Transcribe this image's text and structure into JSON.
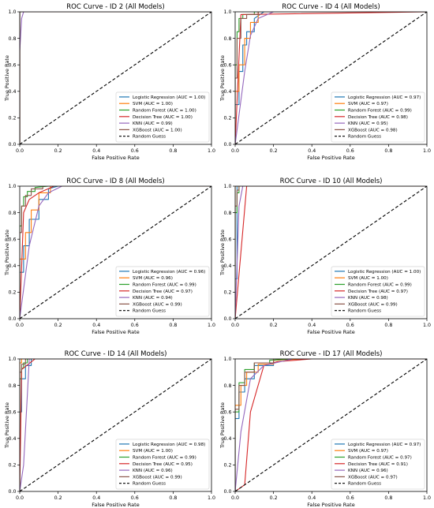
{
  "figure": {
    "background": "#ffffff"
  },
  "chart_data": [
    {
      "type": "line",
      "title": "ROC Curve - ID 2 (All Models)",
      "xlabel": "False Positive Rate",
      "ylabel": "True Positive Rate",
      "xlim": [
        0,
        1
      ],
      "ylim": [
        0,
        1
      ],
      "xticks": [
        "0.0",
        "0.2",
        "0.4",
        "0.6",
        "0.8",
        "1.0"
      ],
      "yticks": [
        "0.0",
        "0.2",
        "0.4",
        "0.6",
        "0.8",
        "1.0"
      ],
      "grid": false,
      "legend_position": "lower right",
      "series": [
        {
          "name": "Logistic Regression (AUC = 1.00)",
          "color": "#1f77b4",
          "x": [
            0,
            0,
            1
          ],
          "y": [
            0,
            1,
            1
          ]
        },
        {
          "name": "SVM (AUC = 1.00)",
          "color": "#ff7f0e",
          "x": [
            0,
            0,
            1
          ],
          "y": [
            0,
            1,
            1
          ]
        },
        {
          "name": "Random Forest (AUC = 1.00)",
          "color": "#2ca02c",
          "x": [
            0,
            0,
            1
          ],
          "y": [
            0,
            1,
            1
          ]
        },
        {
          "name": "Decision Tree (AUC = 1.00)",
          "color": "#d62728",
          "x": [
            0,
            0,
            1
          ],
          "y": [
            0,
            1,
            1
          ]
        },
        {
          "name": "KNN (AUC = 0.99)",
          "color": "#9467bd",
          "x": [
            0,
            0,
            0.01,
            0.02,
            1
          ],
          "y": [
            0,
            0.7,
            0.95,
            1,
            1
          ]
        },
        {
          "name": "XGBoost (AUC = 1.00)",
          "color": "#8c564b",
          "x": [
            0,
            0,
            1
          ],
          "y": [
            0,
            1,
            1
          ]
        },
        {
          "name": "Random Guess",
          "color": "#000000",
          "dashed": true,
          "x": [
            0,
            1
          ],
          "y": [
            0,
            1
          ]
        }
      ]
    },
    {
      "type": "line",
      "title": "ROC Curve - ID 4 (All Models)",
      "xlabel": "False Positive Rate",
      "ylabel": "True Positive Rate",
      "xlim": [
        0,
        1
      ],
      "ylim": [
        0,
        1
      ],
      "xticks": [
        "0.0",
        "0.2",
        "0.4",
        "0.6",
        "0.8",
        "1.0"
      ],
      "yticks": [
        "0.0",
        "0.2",
        "0.4",
        "0.6",
        "0.8",
        "1.0"
      ],
      "grid": false,
      "legend_position": "lower right",
      "series": [
        {
          "name": "Logistic Regression (AUC = 0.97)",
          "color": "#1f77b4",
          "x": [
            0,
            0,
            0.02,
            0.02,
            0.04,
            0.04,
            0.06,
            0.06,
            0.1,
            0.1,
            0.15,
            1
          ],
          "y": [
            0,
            0.3,
            0.3,
            0.55,
            0.55,
            0.75,
            0.75,
            0.85,
            0.85,
            0.95,
            1,
            1
          ]
        },
        {
          "name": "SVM (AUC = 0.97)",
          "color": "#ff7f0e",
          "x": [
            0,
            0,
            0.02,
            0.02,
            0.05,
            0.05,
            0.08,
            0.08,
            0.12,
            0.12,
            1
          ],
          "y": [
            0,
            0.4,
            0.4,
            0.6,
            0.6,
            0.8,
            0.8,
            0.92,
            0.92,
            1,
            1
          ]
        },
        {
          "name": "Random Forest (AUC = 0.99)",
          "color": "#2ca02c",
          "x": [
            0,
            0,
            0.01,
            0.01,
            0.02,
            0.02,
            0.04,
            0.04,
            0.1,
            0.1,
            1
          ],
          "y": [
            0,
            0.6,
            0.6,
            0.85,
            0.85,
            0.95,
            0.95,
            0.98,
            0.98,
            1,
            1
          ]
        },
        {
          "name": "Decision Tree (AUC = 0.98)",
          "color": "#d62728",
          "x": [
            0,
            0.03,
            1
          ],
          "y": [
            0,
            0.98,
            1
          ]
        },
        {
          "name": "KNN (AUC = 0.95)",
          "color": "#9467bd",
          "x": [
            0,
            0.05,
            0.08,
            0.12,
            0.2,
            1
          ],
          "y": [
            0,
            0.55,
            0.82,
            0.95,
            1,
            1
          ]
        },
        {
          "name": "XGBoost (AUC = 0.98)",
          "color": "#8c564b",
          "x": [
            0,
            0,
            0.01,
            0.01,
            0.03,
            0.03,
            0.06,
            0.06,
            0.12,
            0.12,
            1
          ],
          "y": [
            0,
            0.5,
            0.5,
            0.8,
            0.8,
            0.95,
            0.95,
            0.98,
            0.98,
            1,
            1
          ]
        },
        {
          "name": "Random Guess",
          "color": "#000000",
          "dashed": true,
          "x": [
            0,
            1
          ],
          "y": [
            0,
            1
          ]
        }
      ]
    },
    {
      "type": "line",
      "title": "ROC Curve - ID 8 (All Models)",
      "xlabel": "False Positive Rate",
      "ylabel": "True Positive Rate",
      "xlim": [
        0,
        1
      ],
      "ylim": [
        0,
        1
      ],
      "xticks": [
        "0.0",
        "0.2",
        "0.4",
        "0.6",
        "0.8",
        "1.0"
      ],
      "yticks": [
        "0.0",
        "0.2",
        "0.4",
        "0.6",
        "0.8",
        "1.0"
      ],
      "grid": false,
      "legend_position": "lower right",
      "series": [
        {
          "name": "Logistic Regression (AUC = 0.96)",
          "color": "#1f77b4",
          "x": [
            0,
            0,
            0.02,
            0.02,
            0.05,
            0.05,
            0.1,
            0.1,
            0.15,
            0.15,
            0.2,
            1
          ],
          "y": [
            0,
            0.35,
            0.35,
            0.55,
            0.55,
            0.75,
            0.75,
            0.9,
            0.9,
            0.98,
            1,
            1
          ]
        },
        {
          "name": "SVM (AUC = 0.96)",
          "color": "#ff7f0e",
          "x": [
            0,
            0,
            0.03,
            0.03,
            0.06,
            0.06,
            0.1,
            0.1,
            0.16,
            0.16,
            1
          ],
          "y": [
            0,
            0.45,
            0.45,
            0.65,
            0.65,
            0.82,
            0.82,
            0.95,
            0.95,
            1,
            1
          ]
        },
        {
          "name": "Random Forest (AUC = 0.99)",
          "color": "#2ca02c",
          "x": [
            0,
            0,
            0.01,
            0.01,
            0.02,
            0.02,
            0.04,
            0.04,
            0.08,
            0.08,
            0.15,
            1
          ],
          "y": [
            0,
            0.7,
            0.7,
            0.85,
            0.85,
            0.92,
            0.92,
            0.96,
            0.96,
            0.99,
            1,
            1
          ]
        },
        {
          "name": "Decision Tree (AUC = 0.97)",
          "color": "#d62728",
          "x": [
            0,
            0.02,
            0.05,
            0.1,
            0.18,
            1
          ],
          "y": [
            0,
            0.8,
            0.9,
            0.95,
            1,
            1
          ]
        },
        {
          "name": "KNN (AUC = 0.94)",
          "color": "#9467bd",
          "x": [
            0,
            0.05,
            0.1,
            0.15,
            0.22,
            1
          ],
          "y": [
            0,
            0.55,
            0.85,
            0.95,
            1,
            1
          ]
        },
        {
          "name": "XGBoost (AUC = 0.99)",
          "color": "#8c564b",
          "x": [
            0,
            0,
            0.01,
            0.01,
            0.03,
            0.03,
            0.06,
            0.06,
            0.12,
            0.12,
            1
          ],
          "y": [
            0,
            0.65,
            0.65,
            0.85,
            0.85,
            0.93,
            0.93,
            0.98,
            0.98,
            1,
            1
          ]
        },
        {
          "name": "Random Guess",
          "color": "#000000",
          "dashed": true,
          "x": [
            0,
            1
          ],
          "y": [
            0,
            1
          ]
        }
      ]
    },
    {
      "type": "line",
      "title": "ROC Curve - ID 10 (All Models)",
      "xlabel": "False Positive Rate",
      "ylabel": "True Positive Rate",
      "xlim": [
        0,
        1
      ],
      "ylim": [
        0,
        1
      ],
      "xticks": [
        "0.0",
        "0.2",
        "0.4",
        "0.6",
        "0.8",
        "1.0"
      ],
      "yticks": [
        "0.0",
        "0.2",
        "0.4",
        "0.6",
        "0.8",
        "1.0"
      ],
      "grid": false,
      "legend_position": "lower right",
      "series": [
        {
          "name": "Logistic Regression (AUC = 1.00)",
          "color": "#1f77b4",
          "x": [
            0,
            0,
            0.01,
            0.01,
            1
          ],
          "y": [
            0,
            0.3,
            0.3,
            1,
            1
          ]
        },
        {
          "name": "SVM (AUC = 1.00)",
          "color": "#ff7f0e",
          "x": [
            0,
            0,
            1
          ],
          "y": [
            0,
            1,
            1
          ]
        },
        {
          "name": "Random Forest (AUC = 0.99)",
          "color": "#2ca02c",
          "x": [
            0,
            0,
            0.01,
            0.01,
            0.02,
            0.02,
            1
          ],
          "y": [
            0,
            0.8,
            0.8,
            0.95,
            0.95,
            1,
            1
          ]
        },
        {
          "name": "Decision Tree (AUC = 0.97)",
          "color": "#d62728",
          "x": [
            0,
            0.06,
            1
          ],
          "y": [
            0,
            1,
            1
          ]
        },
        {
          "name": "KNN (AUC = 0.98)",
          "color": "#9467bd",
          "x": [
            0,
            0.02,
            0.04,
            1
          ],
          "y": [
            0,
            0.85,
            1,
            1
          ]
        },
        {
          "name": "XGBoost (AUC = 0.99)",
          "color": "#8c564b",
          "x": [
            0,
            0,
            0.01,
            0.01,
            0.02,
            0.02,
            1
          ],
          "y": [
            0,
            0.85,
            0.85,
            0.97,
            0.97,
            1,
            1
          ]
        },
        {
          "name": "Random Guess",
          "color": "#000000",
          "dashed": true,
          "x": [
            0,
            1
          ],
          "y": [
            0,
            1
          ]
        }
      ]
    },
    {
      "type": "line",
      "title": "ROC Curve - ID 14 (All Models)",
      "xlabel": "False Positive Rate",
      "ylabel": "True Positive Rate",
      "xlim": [
        0,
        1
      ],
      "ylim": [
        0,
        1
      ],
      "xticks": [
        "0.0",
        "0.2",
        "0.4",
        "0.6",
        "0.8",
        "1.0"
      ],
      "yticks": [
        "0.0",
        "0.2",
        "0.4",
        "0.6",
        "0.8",
        "1.0"
      ],
      "grid": false,
      "legend_position": "lower right",
      "series": [
        {
          "name": "Logistic Regression (AUC = 0.98)",
          "color": "#1f77b4",
          "x": [
            0,
            0,
            0.01,
            0.01,
            0.03,
            0.03,
            0.06,
            0.06,
            1
          ],
          "y": [
            0,
            0.6,
            0.6,
            0.85,
            0.85,
            0.95,
            0.95,
            1,
            1
          ]
        },
        {
          "name": "SVM (AUC = 1.00)",
          "color": "#ff7f0e",
          "x": [
            0,
            0,
            0.01,
            0.01,
            1
          ],
          "y": [
            0,
            0.97,
            0.97,
            1,
            1
          ]
        },
        {
          "name": "Random Forest (AUC = 0.99)",
          "color": "#2ca02c",
          "x": [
            0,
            0,
            0.01,
            0.01,
            0.02,
            0.02,
            0.04,
            0.04,
            1
          ],
          "y": [
            0,
            0.85,
            0.85,
            0.93,
            0.93,
            0.97,
            0.97,
            1,
            1
          ]
        },
        {
          "name": "Decision Tree (AUC = 0.95)",
          "color": "#d62728",
          "x": [
            0,
            0.01,
            0.08,
            1
          ],
          "y": [
            0,
            0.92,
            1,
            1
          ]
        },
        {
          "name": "KNN (AUC = 0.96)",
          "color": "#9467bd",
          "x": [
            0,
            0.02,
            0.05,
            1
          ],
          "y": [
            0,
            0.2,
            1,
            1
          ]
        },
        {
          "name": "XGBoost (AUC = 0.99)",
          "color": "#8c564b",
          "x": [
            0,
            0,
            0.01,
            0.01,
            0.03,
            0.03,
            1
          ],
          "y": [
            0,
            0.9,
            0.9,
            0.96,
            0.96,
            1,
            1
          ]
        },
        {
          "name": "Random Guess",
          "color": "#000000",
          "dashed": true,
          "x": [
            0,
            1
          ],
          "y": [
            0,
            1
          ]
        }
      ]
    },
    {
      "type": "line",
      "title": "ROC Curve - ID 17 (All Models)",
      "xlabel": "False Positive Rate",
      "ylabel": "True Positive Rate",
      "xlim": [
        0,
        1
      ],
      "ylim": [
        0,
        1
      ],
      "xticks": [
        "0.0",
        "0.2",
        "0.4",
        "0.6",
        "0.8",
        "1.0"
      ],
      "yticks": [
        "0.0",
        "0.2",
        "0.4",
        "0.6",
        "0.8",
        "1.0"
      ],
      "grid": false,
      "legend_position": "lower right",
      "series": [
        {
          "name": "Logistic Regression (AUC = 0.97)",
          "color": "#1f77b4",
          "x": [
            0,
            0,
            0.02,
            0.02,
            0.05,
            0.05,
            0.1,
            0.1,
            0.2,
            0.2,
            0.3,
            1
          ],
          "y": [
            0,
            0.55,
            0.55,
            0.75,
            0.75,
            0.85,
            0.85,
            0.95,
            0.95,
            0.99,
            1,
            1
          ]
        },
        {
          "name": "SVM (AUC = 0.97)",
          "color": "#ff7f0e",
          "x": [
            0,
            0,
            0.03,
            0.03,
            0.06,
            0.06,
            0.12,
            0.12,
            0.2,
            0.2,
            0.35,
            1
          ],
          "y": [
            0,
            0.65,
            0.65,
            0.8,
            0.8,
            0.9,
            0.9,
            0.96,
            0.96,
            0.99,
            1,
            1
          ]
        },
        {
          "name": "Random Forest (AUC = 0.97)",
          "color": "#2ca02c",
          "x": [
            0,
            0,
            0.02,
            0.02,
            0.05,
            0.05,
            0.1,
            0.1,
            0.18,
            0.18,
            0.3,
            1
          ],
          "y": [
            0,
            0.6,
            0.6,
            0.82,
            0.82,
            0.92,
            0.92,
            0.97,
            0.97,
            0.99,
            1,
            1
          ]
        },
        {
          "name": "Decision Tree (AUC = 0.91)",
          "color": "#d62728",
          "x": [
            0,
            0.05,
            0.08,
            0.15,
            0.22,
            0.4,
            1
          ],
          "y": [
            0,
            0.05,
            0.6,
            0.95,
            0.98,
            1,
            1
          ]
        },
        {
          "name": "KNN (AUC = 0.96)",
          "color": "#9467bd",
          "x": [
            0,
            0.03,
            0.08,
            0.15,
            0.3,
            1
          ],
          "y": [
            0,
            0.45,
            0.85,
            0.95,
            1,
            1
          ]
        },
        {
          "name": "XGBoost (AUC = 0.97)",
          "color": "#8c564b",
          "x": [
            0,
            0,
            0.02,
            0.02,
            0.05,
            0.05,
            0.1,
            0.1,
            0.2,
            0.2,
            1
          ],
          "y": [
            0,
            0.62,
            0.62,
            0.8,
            0.8,
            0.9,
            0.9,
            0.97,
            0.97,
            1,
            1
          ]
        },
        {
          "name": "Random Guess",
          "color": "#000000",
          "dashed": true,
          "x": [
            0,
            1
          ],
          "y": [
            0,
            1
          ]
        }
      ]
    }
  ]
}
